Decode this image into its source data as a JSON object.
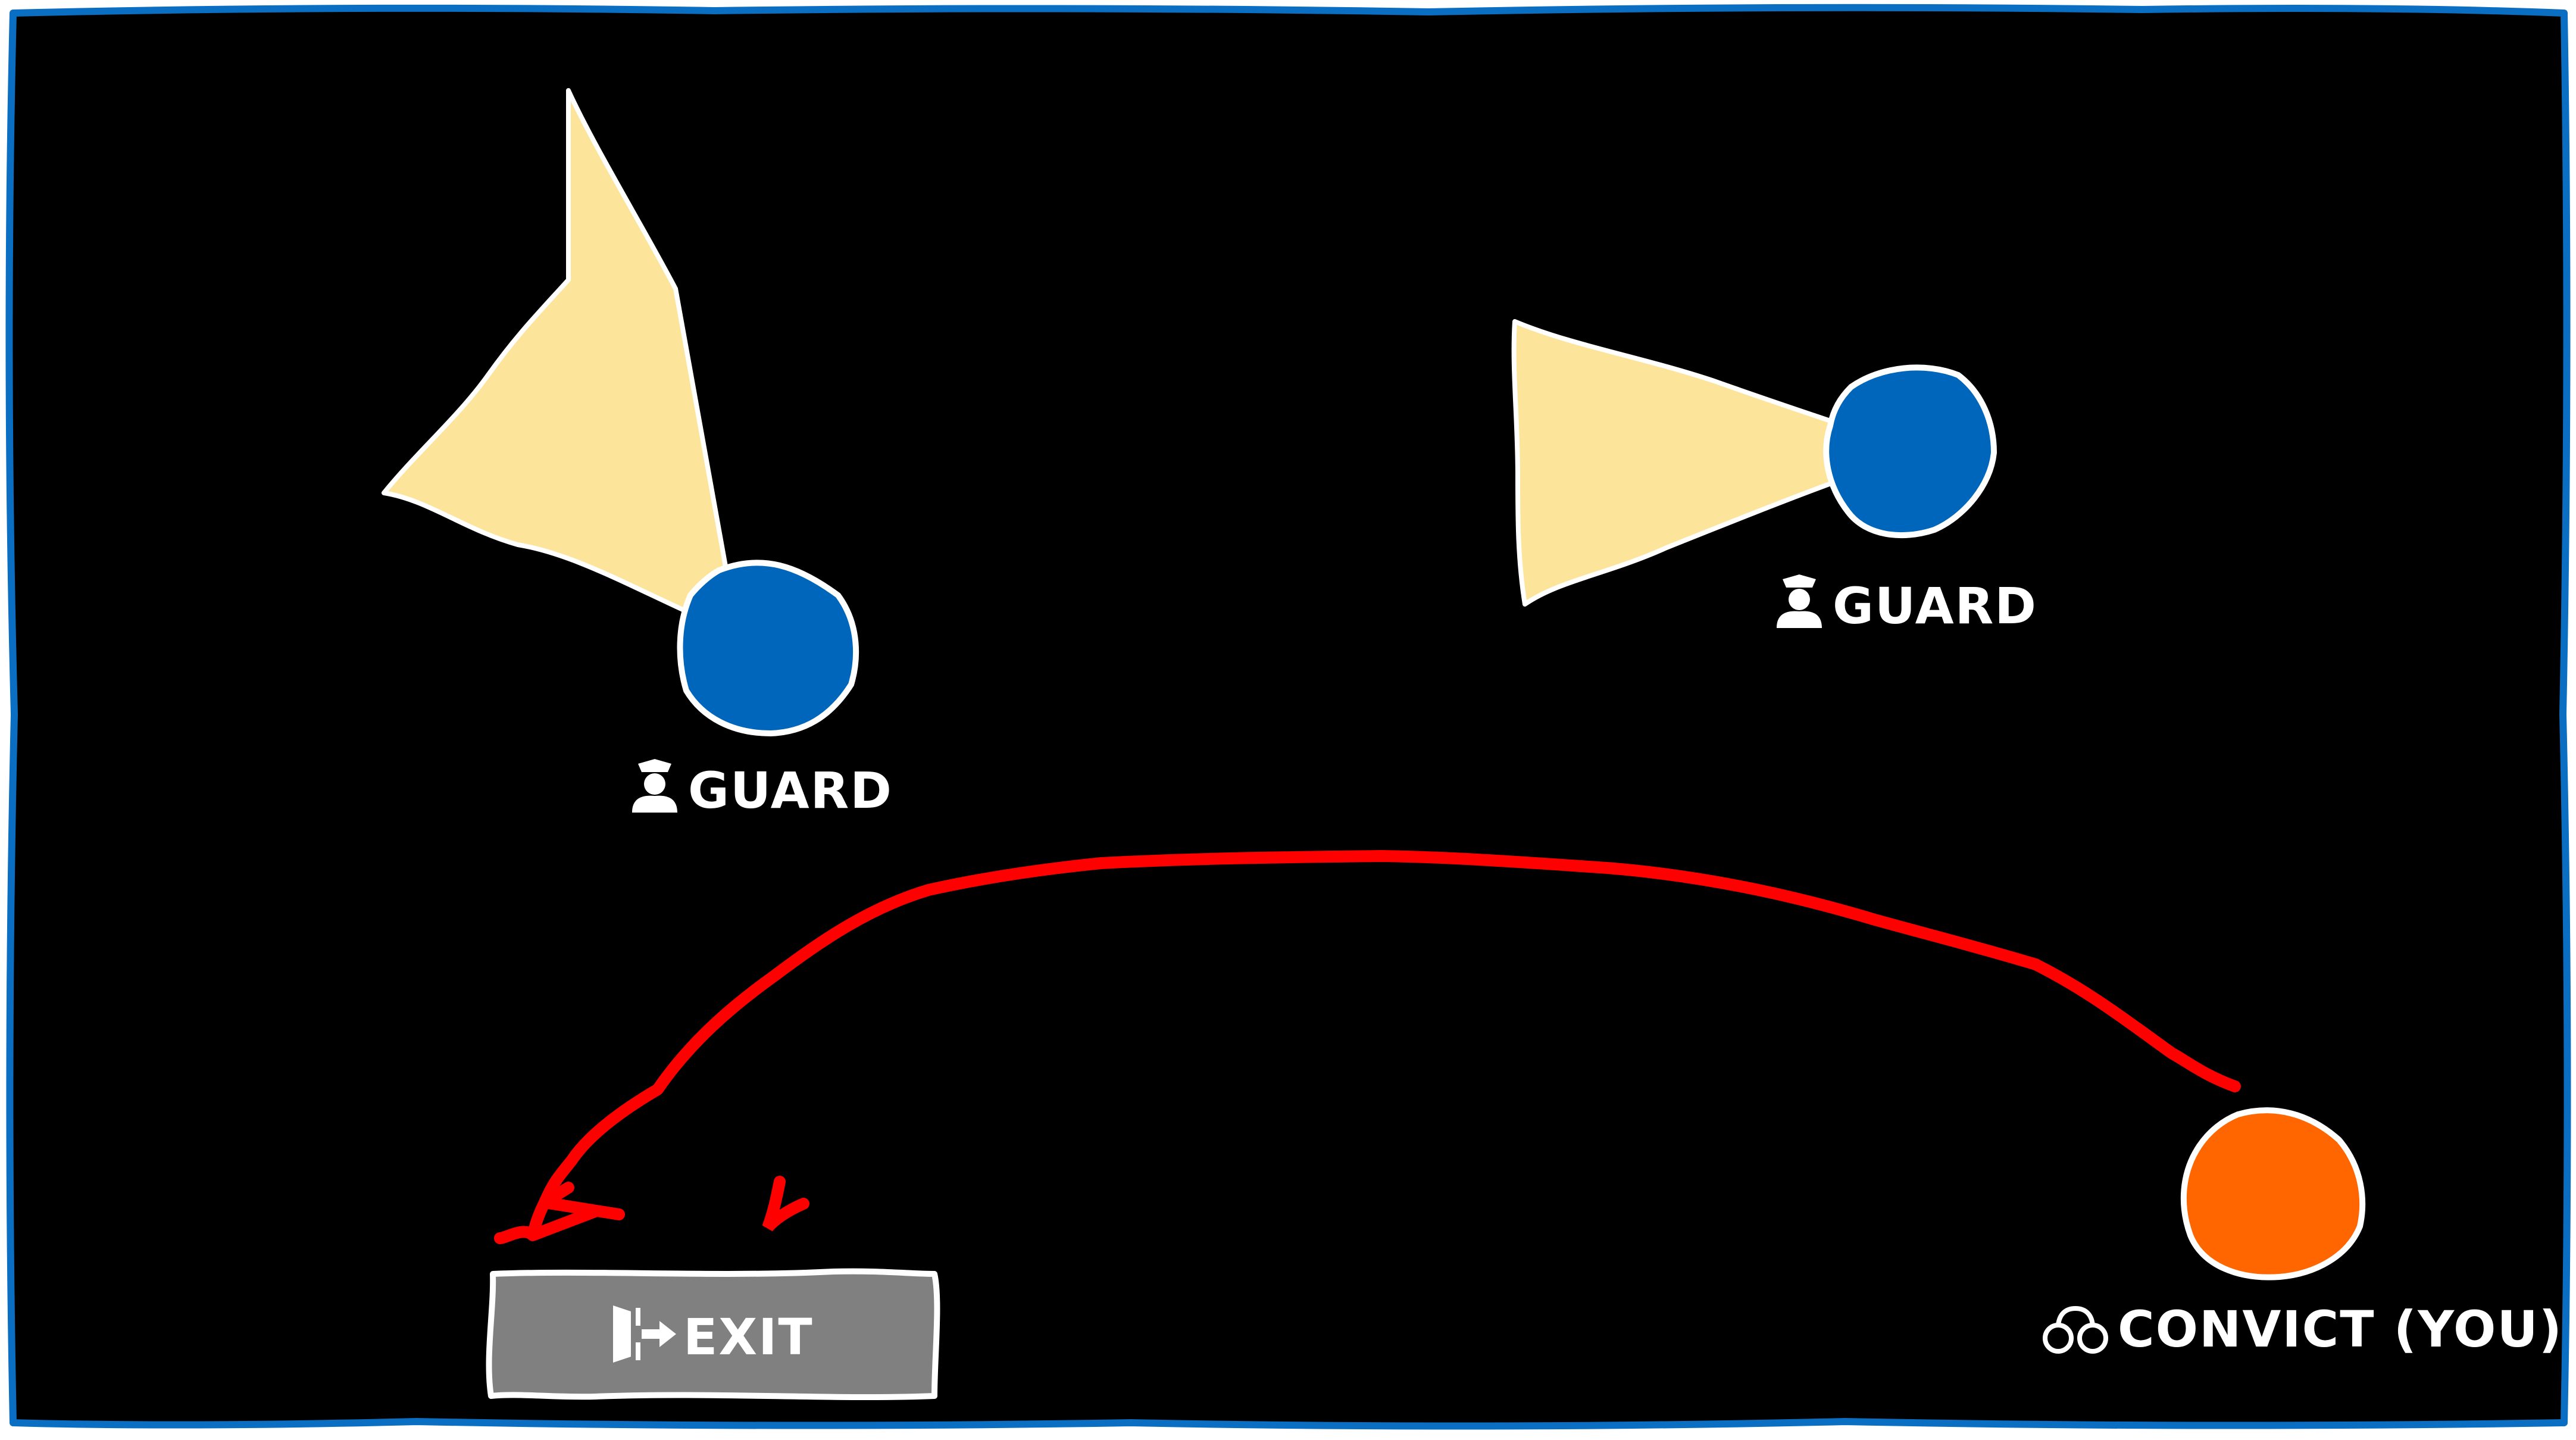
{
  "scene": {
    "background_color": "#000000",
    "border_color": "#0a6fc2"
  },
  "guards": [
    {
      "label": "GUARD",
      "icon": "police-officer-icon",
      "color": "#0066bb",
      "vision_cone_color": "#fde49b"
    },
    {
      "label": "GUARD",
      "icon": "police-officer-icon",
      "color": "#0066bb",
      "vision_cone_color": "#fde49b"
    }
  ],
  "convict": {
    "label": "CONVICT (YOU)",
    "icon": "handcuffs-icon",
    "color": "#ff6600"
  },
  "exit": {
    "label": "EXIT",
    "icon": "exit-door-icon",
    "color": "#808080"
  },
  "escape_path": {
    "color": "#ff0000"
  }
}
